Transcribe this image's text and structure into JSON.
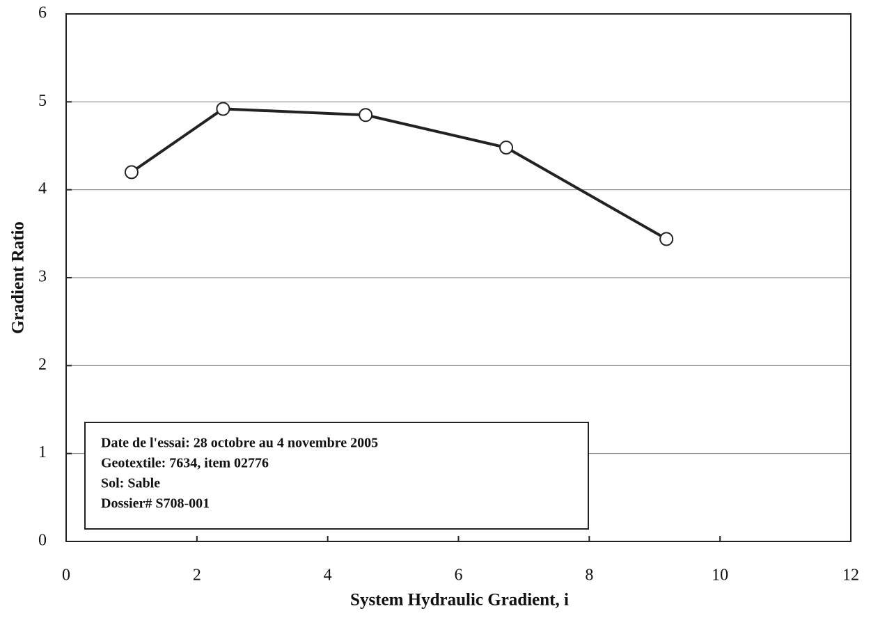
{
  "chart_data": {
    "type": "line",
    "x_label": "System Hydraulic Gradient, i",
    "y_label": "Gradient Ratio",
    "x": [
      1.0,
      2.4,
      4.58,
      6.73,
      9.18
    ],
    "series": [
      {
        "name": "Gradient Ratio",
        "color": "#222222",
        "values": [
          4.2,
          4.92,
          4.85,
          4.48,
          3.44
        ]
      }
    ],
    "xlim": [
      0,
      12
    ],
    "xticks": [
      0,
      2,
      4,
      6,
      8,
      10,
      12
    ],
    "ylim": [
      0,
      6
    ],
    "yticks": [
      0,
      1,
      2,
      3,
      4,
      5,
      6
    ],
    "grid": true,
    "annotation": [
      "Date de l'essai:  28 octobre au 4 novembre 2005",
      "Geotextile:  7634, item 02776",
      "Sol:  Sable",
      "Dossier# S708-001"
    ]
  }
}
